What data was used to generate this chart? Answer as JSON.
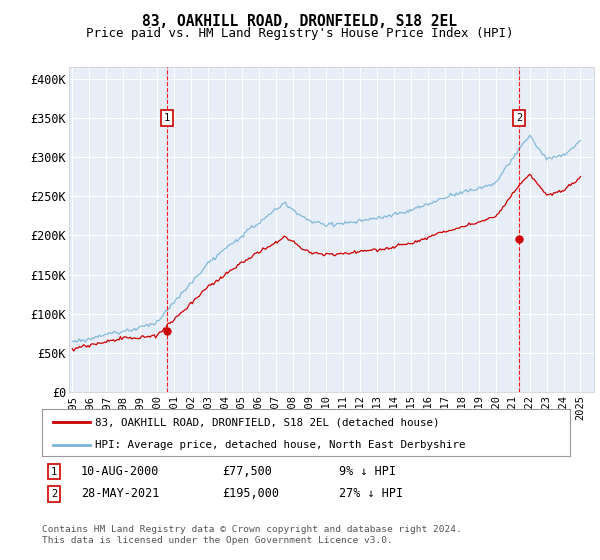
{
  "title": "83, OAKHILL ROAD, DRONFIELD, S18 2EL",
  "subtitle": "Price paid vs. HM Land Registry's House Price Index (HPI)",
  "ylabel_ticks": [
    "£0",
    "£50K",
    "£100K",
    "£150K",
    "£200K",
    "£250K",
    "£300K",
    "£350K",
    "£400K"
  ],
  "ylim": [
    0,
    415000
  ],
  "yticks": [
    0,
    50000,
    100000,
    150000,
    200000,
    250000,
    300000,
    350000,
    400000
  ],
  "hpi_color": "#7ab3d4",
  "price_color": "#cc0000",
  "m1_year": 2000.6,
  "m1_price": 77500,
  "m2_year": 2021.38,
  "m2_price": 195000,
  "legend_line1": "83, OAKHILL ROAD, DRONFIELD, S18 2EL (detached house)",
  "legend_line2": "HPI: Average price, detached house, North East Derbyshire",
  "label1_date": "10-AUG-2000",
  "label1_price": "£77,500",
  "label1_hpi": "9% ↓ HPI",
  "label2_date": "28-MAY-2021",
  "label2_price": "£195,000",
  "label2_hpi": "27% ↓ HPI",
  "footer": "Contains HM Land Registry data © Crown copyright and database right 2024.\nThis data is licensed under the Open Government Licence v3.0.",
  "plot_bg": "#e8eef8",
  "fig_bg": "#ffffff",
  "grid_color": "#ffffff"
}
